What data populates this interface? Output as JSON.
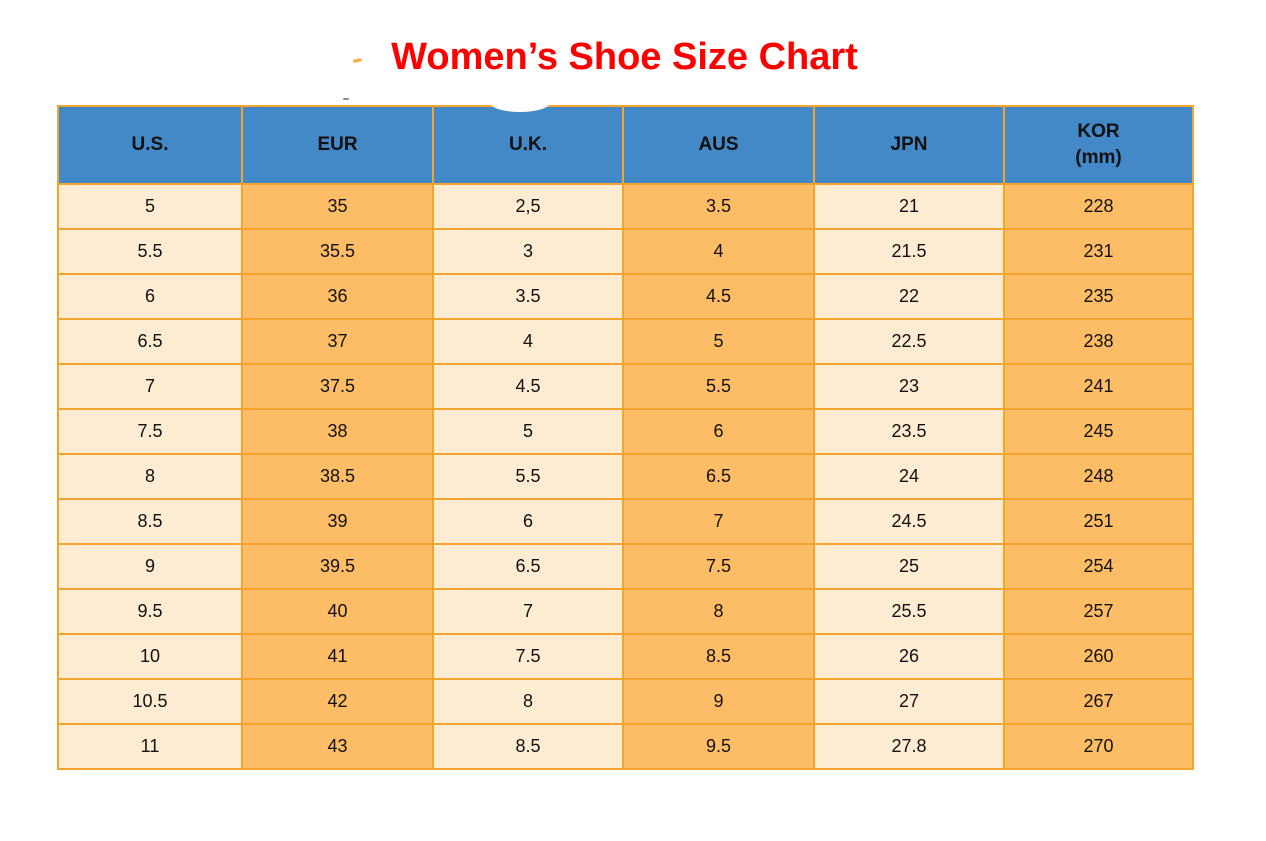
{
  "page": {
    "title": "Women’s Shoe Size Chart"
  },
  "colors": {
    "header_bg": "#4489c7",
    "col_light": "#fdecd2",
    "col_orange": "#fdbd66",
    "border_color": "#f2a42c",
    "title_color": "#fe0000",
    "text_color": "#111111"
  },
  "table": {
    "columns": [
      {
        "key": "us",
        "label": "U.S."
      },
      {
        "key": "eur",
        "label": "EUR"
      },
      {
        "key": "uk",
        "label": "U.K."
      },
      {
        "key": "aus",
        "label": "AUS"
      },
      {
        "key": "jpn",
        "label": "JPN"
      },
      {
        "key": "kor",
        "label": "KOR",
        "label_line2": "(mm)"
      }
    ],
    "rows": [
      [
        "5",
        "35",
        "2,5",
        "3.5",
        "21",
        "228"
      ],
      [
        "5.5",
        "35.5",
        "3",
        "4",
        "21.5",
        "231"
      ],
      [
        "6",
        "36",
        "3.5",
        "4.5",
        "22",
        "235"
      ],
      [
        "6.5",
        "37",
        "4",
        "5",
        "22.5",
        "238"
      ],
      [
        "7",
        "37.5",
        "4.5",
        "5.5",
        "23",
        "241"
      ],
      [
        "7.5",
        "38",
        "5",
        "6",
        "23.5",
        "245"
      ],
      [
        "8",
        "38.5",
        "5.5",
        "6.5",
        "24",
        "248"
      ],
      [
        "8.5",
        "39",
        "6",
        "7",
        "24.5",
        "251"
      ],
      [
        "9",
        "39.5",
        "6.5",
        "7.5",
        "25",
        "254"
      ],
      [
        "9.5",
        "40",
        "7",
        "8",
        "25.5",
        "257"
      ],
      [
        "10",
        "41",
        "7.5",
        "8.5",
        "26",
        "260"
      ],
      [
        "10.5",
        "42",
        "8",
        "9",
        "27",
        "267"
      ],
      [
        "11",
        "43",
        "8.5",
        "9.5",
        "27.8",
        "270"
      ]
    ]
  }
}
